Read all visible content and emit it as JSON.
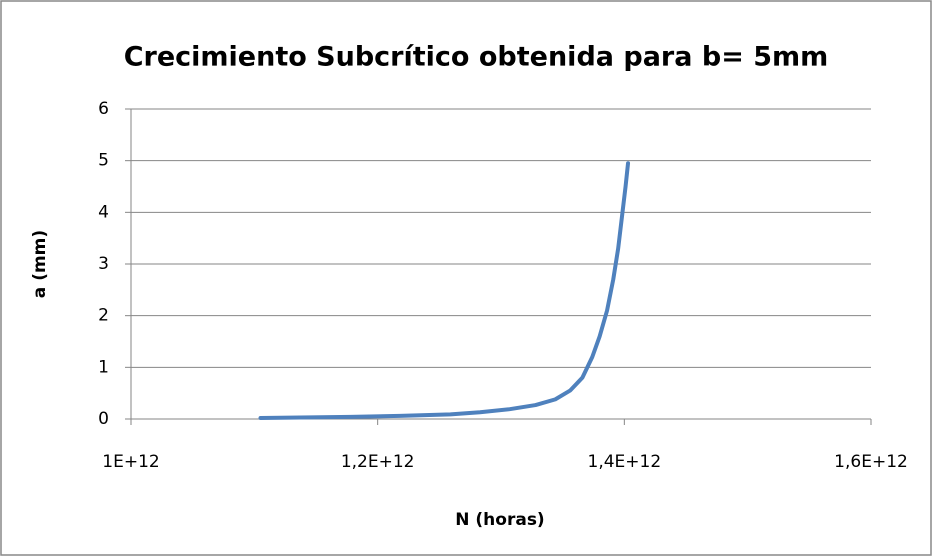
{
  "chart_data": {
    "type": "line",
    "title": "Crecimiento Subcrítico obtenida para b= 5mm",
    "x_label": "N (horas)",
    "y_label": "a (mm)",
    "x": [
      1105000000000,
      1137000000000,
      1178000000000,
      1218000000000,
      1259000000000,
      1283000000000,
      1307000000000,
      1328000000000,
      1344000000000,
      1356000000000,
      1366000000000,
      1374000000000,
      1380000000000,
      1386000000000,
      1391000000000,
      1395000000000,
      1398000000000,
      1401000000000,
      1403000000000
    ],
    "series": [
      {
        "color": "#4f81bd",
        "values": [
          0.02,
          0.03,
          0.04,
          0.06,
          0.09,
          0.13,
          0.19,
          0.27,
          0.38,
          0.55,
          0.8,
          1.2,
          1.6,
          2.1,
          2.7,
          3.3,
          3.9,
          4.5,
          4.95
        ]
      }
    ],
    "xlim": [
      1000000000000,
      1600000000000
    ],
    "xticks": [
      {
        "value": 1000000000000,
        "label": "1E+12"
      },
      {
        "value": 1200000000000,
        "label": "1,2E+12"
      },
      {
        "value": 1400000000000,
        "label": "1,4E+12"
      },
      {
        "value": 1600000000000,
        "label": "1,6E+12"
      }
    ],
    "ylim": [
      0,
      6
    ],
    "yticks": [
      0,
      1,
      2,
      3,
      4,
      5,
      6
    ],
    "grid": true
  }
}
